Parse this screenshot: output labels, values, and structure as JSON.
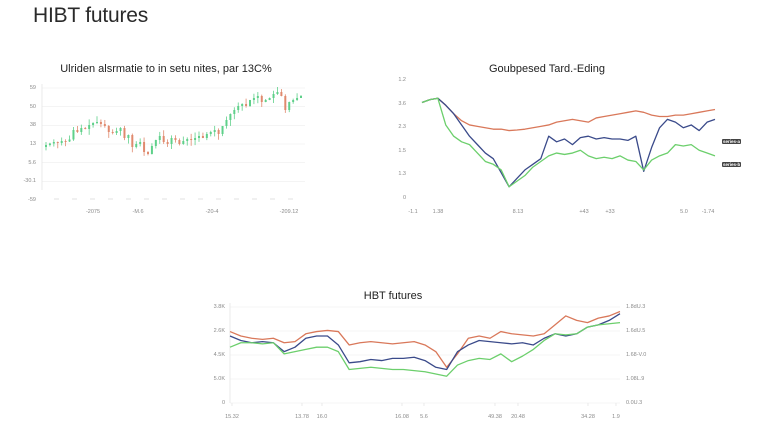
{
  "page": {
    "title": "HIBT futures"
  },
  "colors": {
    "up": "#5fd08a",
    "down": "#e08a6e",
    "orange": "#d9785a",
    "navy": "#3a4a8a",
    "green": "#6ccf6c",
    "grid": "#eeeeee",
    "axis": "#dddddd"
  },
  "chart_data": [
    {
      "id": "candles",
      "type": "bar",
      "subtype": "candlestick",
      "title": "Ulriden alsrmatie to in setu nites, par 13C%",
      "yticks": [
        "59",
        "50",
        "38",
        "13",
        "5.6",
        "-30.1",
        "-59"
      ],
      "xticks_minor": [
        "",
        "",
        "",
        "",
        "",
        "",
        "",
        "",
        "",
        "",
        "",
        "",
        "",
        ""
      ],
      "xticks": [
        "-2075",
        "-M.6",
        "-20-4",
        "-209.12"
      ],
      "trend_close": [
        5.0,
        6.5,
        8.0,
        7.0,
        9.0,
        8.5,
        10.5,
        20.0,
        18.0,
        22.0,
        21.0,
        25.0,
        27.0,
        28.0,
        26.0,
        24.0,
        18.0,
        17.0,
        19.0,
        22.0,
        12.0,
        15.0,
        3.0,
        6.0,
        8.0,
        -2.0,
        -4.0,
        4.0,
        10.0,
        14.0,
        8.0,
        6.0,
        12.0,
        10.0,
        6.0,
        9.0,
        11.0,
        10.0,
        12.0,
        14.0,
        12.0,
        16.0,
        18.0,
        20.0,
        16.0,
        24.0,
        30.0,
        36.0,
        40.0,
        44.0,
        46.0,
        44.0,
        50.0,
        52.0,
        54.0,
        48.0,
        50.0,
        52.0,
        56.0,
        58.0,
        54.0,
        40.0,
        48.0,
        50.0,
        52.0,
        54.0
      ],
      "ylim": [
        -40,
        62
      ]
    },
    {
      "id": "lines-top-right",
      "type": "line",
      "title": "Goubpesed Tard.-Eding",
      "yticks": [
        "1.2",
        "3.6",
        "2.3",
        "1.5",
        "1.3",
        "0"
      ],
      "xticks": [
        "-1.1",
        "1.38",
        "8.13",
        "+43",
        "+33",
        "5.0",
        "-1.74"
      ],
      "legend": [
        "series-a",
        "series-b"
      ],
      "series": [
        {
          "name": "orange",
          "values": [
            3.4,
            3.5,
            3.55,
            3.3,
            3.0,
            2.75,
            2.6,
            2.55,
            2.5,
            2.45,
            2.45,
            2.4,
            2.42,
            2.45,
            2.5,
            2.55,
            2.6,
            2.7,
            2.75,
            2.8,
            2.75,
            2.7,
            2.85,
            2.9,
            2.95,
            3.0,
            3.05,
            3.1,
            3.05,
            2.95,
            2.9,
            2.9,
            2.95,
            2.95,
            3.0,
            3.05,
            3.1,
            3.15
          ]
        },
        {
          "name": "navy",
          "values": [
            3.4,
            3.5,
            3.55,
            3.3,
            3.0,
            2.6,
            2.2,
            1.9,
            1.6,
            1.4,
            0.9,
            0.4,
            0.7,
            1.0,
            1.2,
            1.4,
            2.2,
            2.0,
            2.1,
            1.9,
            2.15,
            2.2,
            2.1,
            2.15,
            2.1,
            2.1,
            2.05,
            2.2,
            0.95,
            1.8,
            2.5,
            2.8,
            2.7,
            2.5,
            2.6,
            2.4,
            2.7,
            2.8
          ]
        },
        {
          "name": "green",
          "values": [
            3.4,
            3.5,
            3.55,
            2.6,
            2.2,
            2.0,
            1.9,
            1.6,
            1.3,
            1.2,
            1.0,
            0.4,
            0.6,
            0.8,
            1.1,
            1.3,
            1.5,
            1.6,
            1.55,
            1.6,
            1.7,
            1.5,
            1.4,
            1.45,
            1.4,
            1.5,
            1.35,
            1.3,
            1.0,
            1.35,
            1.5,
            1.6,
            1.9,
            1.85,
            1.9,
            1.7,
            1.6,
            1.5
          ]
        }
      ],
      "ylim": [
        0,
        4.2
      ]
    },
    {
      "id": "lines-bottom",
      "type": "line",
      "title": "HBT futures",
      "yticks": [
        "3.8K",
        "2.6K",
        "4.5K",
        "5.0K",
        "0"
      ],
      "yticks_right": [
        "1.8dU.3",
        "1.6dU.5",
        "1.68-V.0",
        "1.08L.9",
        "0.0U.3"
      ],
      "xticks": [
        "15.32",
        "13.78",
        "16.0",
        "16.08",
        "5.6",
        "49.38",
        "20.48",
        "34.28",
        "1.9"
      ],
      "series": [
        {
          "name": "orange",
          "values": [
            3.2,
            3.0,
            2.9,
            2.85,
            2.9,
            2.7,
            2.75,
            3.1,
            3.2,
            3.25,
            3.2,
            2.6,
            2.7,
            2.75,
            2.7,
            2.65,
            2.7,
            2.75,
            2.6,
            2.3,
            1.6,
            2.2,
            2.9,
            3.0,
            2.9,
            3.2,
            3.1,
            3.05,
            3.0,
            3.1,
            3.5,
            3.9,
            3.7,
            3.6,
            3.8,
            3.9,
            4.1
          ]
        },
        {
          "name": "navy",
          "values": [
            3.0,
            2.8,
            2.7,
            2.75,
            2.7,
            2.3,
            2.5,
            2.9,
            3.0,
            3.0,
            2.6,
            1.8,
            1.85,
            1.95,
            1.9,
            2.0,
            2.0,
            2.05,
            1.9,
            1.6,
            1.5,
            2.3,
            2.6,
            2.8,
            2.75,
            2.7,
            2.65,
            2.7,
            2.6,
            2.9,
            3.1,
            3.0,
            3.1,
            3.4,
            3.5,
            3.7,
            4.0
          ]
        },
        {
          "name": "green",
          "values": [
            2.5,
            2.7,
            2.7,
            2.65,
            2.7,
            2.2,
            2.3,
            2.4,
            2.5,
            2.5,
            2.3,
            1.5,
            1.55,
            1.6,
            1.55,
            1.5,
            1.5,
            1.45,
            1.4,
            1.3,
            1.2,
            1.7,
            1.9,
            2.0,
            1.95,
            2.2,
            1.85,
            2.1,
            2.4,
            2.8,
            3.1,
            3.05,
            3.1,
            3.4,
            3.5,
            3.55,
            3.6
          ]
        }
      ],
      "ylim": [
        0,
        4.3
      ]
    }
  ]
}
